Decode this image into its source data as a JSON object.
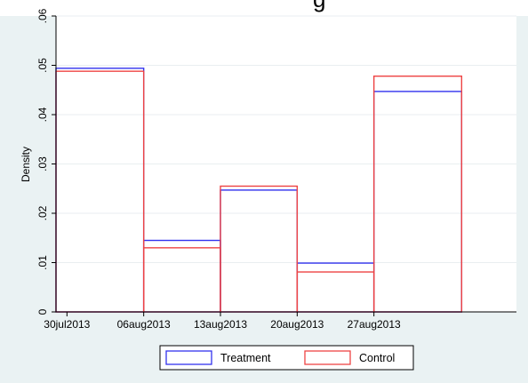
{
  "colors": {
    "background": "#eaf2f3",
    "plot_background": "#ffffff",
    "treatment": "#3333ee",
    "control": "#ee4444",
    "gridline": "#e9eef0"
  },
  "chart_data": {
    "type": "bar",
    "chart_style": "histogram-outline",
    "ylabel": "Density",
    "ylim": [
      0,
      0.06
    ],
    "yticks": [
      {
        "value": 0,
        "label": "0"
      },
      {
        "value": 0.01,
        "label": ".01"
      },
      {
        "value": 0.02,
        "label": ".02"
      },
      {
        "value": 0.03,
        "label": ".03"
      },
      {
        "value": 0.04,
        "label": ".04"
      },
      {
        "value": 0.05,
        "label": ".05"
      },
      {
        "value": 0.06,
        "label": ".06"
      }
    ],
    "x_axis_type": "date",
    "xlim": [
      "2013-07-29",
      "2013-09-09"
    ],
    "xticks": [
      {
        "value": "2013-07-30",
        "label": "30jul2013"
      },
      {
        "value": "2013-08-06",
        "label": "06aug2013"
      },
      {
        "value": "2013-08-13",
        "label": "13aug2013"
      },
      {
        "value": "2013-08-20",
        "label": "20aug2013"
      },
      {
        "value": "2013-08-27",
        "label": "27aug2013"
      }
    ],
    "bins": [
      {
        "start": "2013-07-29",
        "end": "2013-08-06"
      },
      {
        "start": "2013-08-06",
        "end": "2013-08-13"
      },
      {
        "start": "2013-08-13",
        "end": "2013-08-20"
      },
      {
        "start": "2013-08-20",
        "end": "2013-08-27"
      },
      {
        "start": "2013-08-27",
        "end": "2013-09-04"
      }
    ],
    "series": [
      {
        "name": "Treatment",
        "values": [
          0.0494,
          0.0145,
          0.0247,
          0.0099,
          0.0447
        ]
      },
      {
        "name": "Control",
        "values": [
          0.0488,
          0.013,
          0.0255,
          0.0081,
          0.0478
        ]
      }
    ],
    "grid": true,
    "legend": "bottom"
  }
}
